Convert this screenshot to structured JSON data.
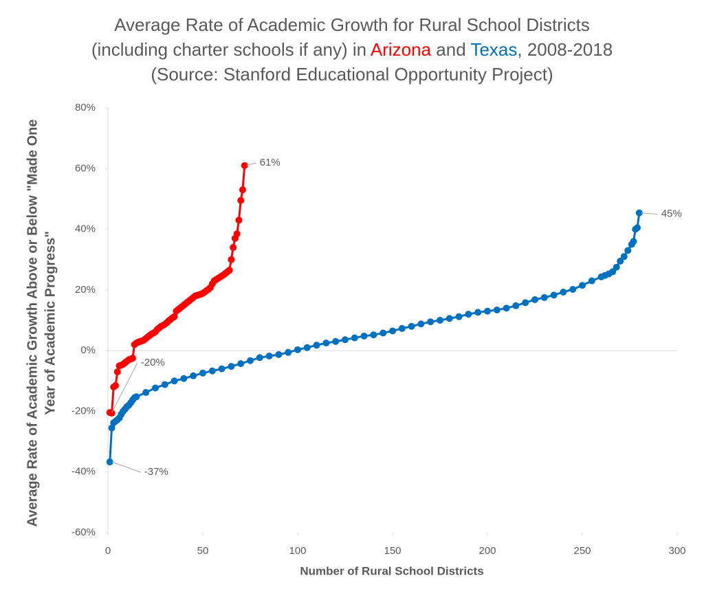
{
  "chart_data": {
    "type": "line",
    "title": [
      "Average Rate of Academic Growth for Rural School Districts (including charter schools if any) in",
      "and",
      ", 2008-2018 (Source: Stanford Educational Opportunity Project)"
    ],
    "xlabel": "Number of Rural School Districts",
    "ylabel": [
      "Average Rate of Academic Growth Above or Below \"Made One",
      "Year of Academic Progress\""
    ],
    "xlim": [
      0,
      300
    ],
    "xticks": [
      0,
      50,
      100,
      150,
      200,
      250,
      300
    ],
    "ylim": [
      -60,
      80
    ],
    "yticks": [
      {
        "value": -60,
        "label": "-60%"
      },
      {
        "value": -40,
        "label": "-40%"
      },
      {
        "value": -20,
        "label": "-20%"
      },
      {
        "value": 0,
        "label": "0%"
      },
      {
        "value": 20,
        "label": "20%"
      },
      {
        "value": 40,
        "label": "40%"
      },
      {
        "value": 60,
        "label": "60%"
      },
      {
        "value": 80,
        "label": "80%"
      }
    ],
    "grid": false,
    "series": [
      {
        "name": "Arizona",
        "color": "#ff0000",
        "x": [
          1,
          2,
          3,
          4,
          5,
          6,
          7,
          8,
          9,
          10,
          11,
          12,
          13,
          14,
          15,
          16,
          17,
          18,
          19,
          20,
          21,
          22,
          23,
          24,
          25,
          26,
          27,
          28,
          29,
          30,
          31,
          32,
          33,
          34,
          35,
          36,
          37,
          38,
          39,
          40,
          41,
          42,
          43,
          44,
          45,
          46,
          47,
          48,
          49,
          50,
          51,
          52,
          53,
          54,
          55,
          56,
          57,
          58,
          59,
          60,
          61,
          62,
          63,
          64,
          65,
          66,
          67,
          68,
          69,
          70,
          71,
          72
        ],
        "values": [
          -20.4,
          -20.6,
          -12,
          -11.5,
          -7,
          -5,
          -4.8,
          -4.5,
          -4,
          -3.5,
          -3,
          -2.8,
          -2.5,
          2,
          2.5,
          2.8,
          3,
          3.2,
          3.5,
          4,
          4.5,
          5,
          5.5,
          5.8,
          6.2,
          7,
          7.5,
          8,
          8.3,
          8.7,
          9.2,
          9.8,
          10.3,
          10.8,
          11.2,
          13,
          13.5,
          14,
          14.5,
          15,
          15.5,
          16,
          16.5,
          17,
          17.5,
          18,
          18.2,
          18.4,
          18.6,
          18.9,
          19.3,
          19.8,
          20.2,
          20.8,
          22,
          23,
          23.4,
          23.8,
          24.2,
          24.6,
          25,
          25.5,
          26,
          26.5,
          30,
          34,
          37,
          38.5,
          43,
          49.5,
          53,
          61
        ],
        "value_labels": [
          "-20%",
          null,
          null,
          null,
          null,
          null,
          null,
          null,
          null,
          null,
          null,
          null,
          null,
          null,
          null,
          null,
          null,
          null,
          null,
          null,
          null,
          null,
          null,
          null,
          null,
          null,
          null,
          null,
          null,
          null,
          null,
          null,
          null,
          null,
          null,
          null,
          null,
          null,
          null,
          null,
          null,
          null,
          null,
          null,
          null,
          null,
          null,
          null,
          null,
          null,
          null,
          null,
          null,
          null,
          null,
          null,
          null,
          null,
          null,
          null,
          null,
          null,
          null,
          null,
          null,
          null,
          null,
          null,
          null,
          null,
          null,
          "61%"
        ]
      },
      {
        "name": "Texas",
        "color": "#0070c0",
        "x": [
          1,
          2,
          3,
          4,
          5,
          6,
          7,
          8,
          9,
          10,
          11,
          12,
          13,
          14,
          15,
          20,
          25,
          30,
          35,
          40,
          45,
          50,
          55,
          60,
          65,
          70,
          75,
          80,
          85,
          90,
          95,
          100,
          105,
          110,
          115,
          120,
          125,
          130,
          135,
          140,
          145,
          150,
          155,
          160,
          165,
          170,
          175,
          180,
          185,
          190,
          195,
          200,
          205,
          210,
          215,
          220,
          225,
          230,
          235,
          240,
          245,
          250,
          255,
          260,
          262,
          264,
          266,
          268,
          270,
          272,
          274,
          276,
          277,
          278,
          279,
          280
        ],
        "values": [
          -36.7,
          -25.5,
          -23.8,
          -23.3,
          -22.8,
          -22.2,
          -21,
          -20,
          -19.3,
          -18.5,
          -18,
          -17.2,
          -16.3,
          -15.5,
          -15.2,
          -13.8,
          -12.3,
          -11.2,
          -10,
          -9.2,
          -8.3,
          -7.4,
          -6.7,
          -6,
          -5.2,
          -4.3,
          -3.3,
          -2.3,
          -1.8,
          -1.3,
          -0.6,
          0.3,
          1,
          1.8,
          2.5,
          3,
          3.6,
          4.2,
          4.8,
          5.2,
          5.8,
          6.5,
          7.3,
          8,
          8.8,
          9.5,
          10,
          10.6,
          11.2,
          12,
          12.6,
          13,
          13.4,
          14,
          14.8,
          15.8,
          16.8,
          17.5,
          18.3,
          19.3,
          20.2,
          21.5,
          23,
          24.3,
          24.8,
          25.3,
          26,
          27.5,
          29.5,
          31,
          33,
          35,
          36,
          40,
          40.5,
          45.4
        ],
        "value_labels": [
          "-37%",
          null,
          null,
          null,
          null,
          null,
          null,
          null,
          null,
          null,
          null,
          null,
          null,
          null,
          null,
          null,
          null,
          null,
          null,
          null,
          null,
          null,
          null,
          null,
          null,
          null,
          null,
          null,
          null,
          null,
          null,
          null,
          null,
          null,
          null,
          null,
          null,
          null,
          null,
          null,
          null,
          null,
          null,
          null,
          null,
          null,
          null,
          null,
          null,
          null,
          null,
          null,
          null,
          null,
          null,
          null,
          null,
          null,
          null,
          null,
          null,
          null,
          null,
          null,
          null,
          null,
          null,
          null,
          null,
          null,
          null,
          null,
          null,
          null,
          null,
          "45%"
        ]
      }
    ]
  }
}
